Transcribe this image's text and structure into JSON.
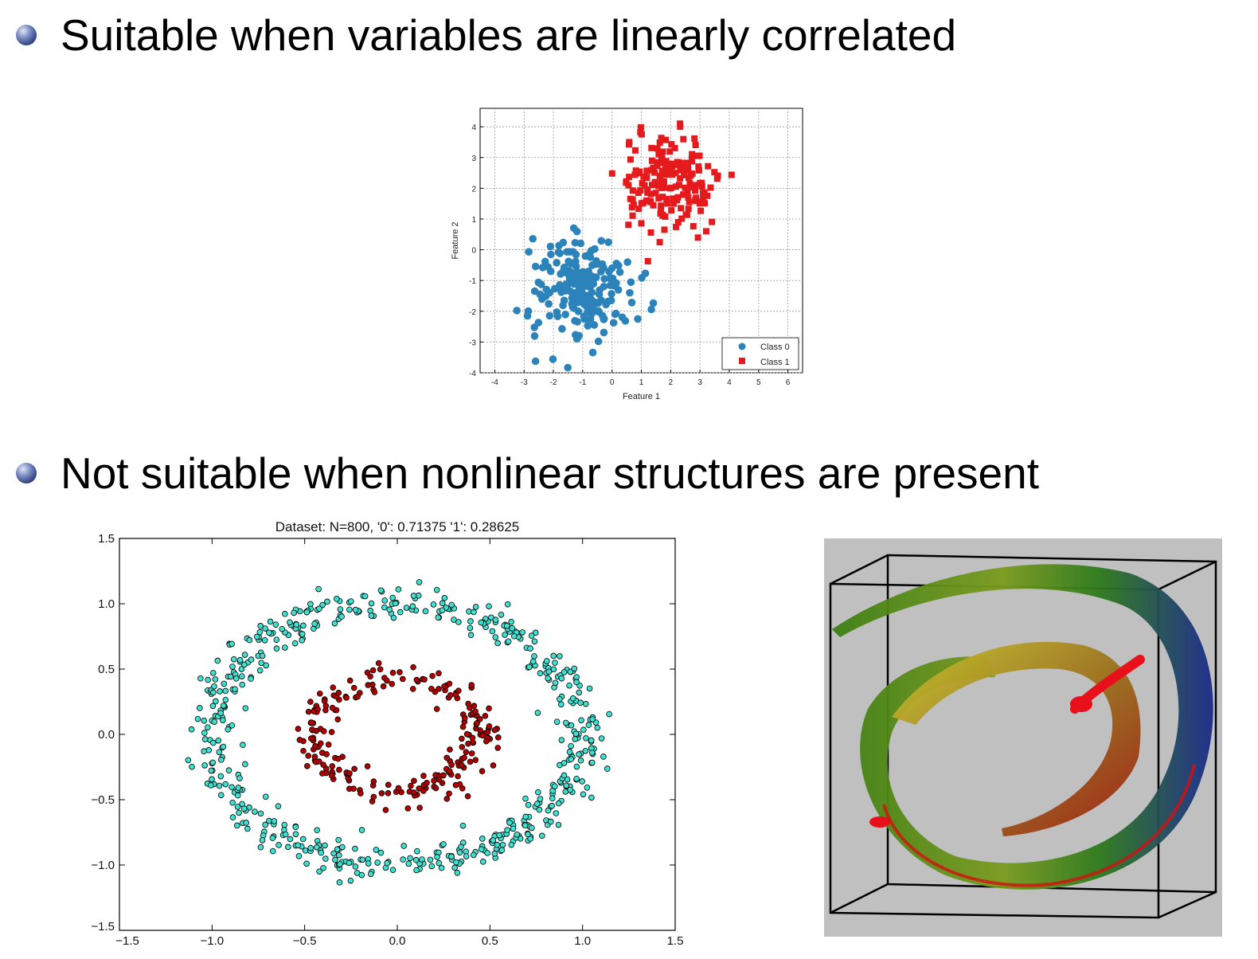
{
  "slide": {
    "bullet1": "Suitable when variables are linearly correlated",
    "bullet2": "Not suitable when nonlinear structures are present"
  },
  "colors": {
    "class0": "#2b83ba",
    "class1": "#e41a1c",
    "outer_ring": "#40e0d0",
    "inner_ring": "#b00000",
    "swiss_bg": "#c0c0c0"
  },
  "chart_data": [
    {
      "type": "scatter",
      "title": "",
      "xlabel": "Feature 1",
      "ylabel": "Feature 2",
      "xlim": [
        -4.5,
        6.5
      ],
      "ylim": [
        -4,
        4.6
      ],
      "xticks": [
        "-4",
        "-3",
        "-2",
        "-1",
        "0",
        "1",
        "2",
        "3",
        "4",
        "5",
        "6"
      ],
      "yticks": [
        "-4",
        "-3",
        "-2",
        "-1",
        "0",
        "1",
        "2",
        "3",
        "4"
      ],
      "grid": true,
      "legend": "bottom-right",
      "series": [
        {
          "name": "Class 0",
          "marker": "circle",
          "center": [
            -1.0,
            -1.2
          ],
          "spread": 0.85,
          "n": 200
        },
        {
          "name": "Class 1",
          "marker": "square",
          "center": [
            1.9,
            2.1
          ],
          "spread": 0.8,
          "n": 180
        }
      ]
    },
    {
      "type": "scatter",
      "title": "Dataset: N=800, '0': 0.71375 '1': 0.28625",
      "xlim": [
        -1.5,
        1.5
      ],
      "ylim": [
        -1.5,
        1.5
      ],
      "xticks": [
        "−1.5",
        "−1.0",
        "−0.5",
        "0.0",
        "0.5",
        "1.0",
        "1.5"
      ],
      "yticks": [
        "−1.5",
        "−1.0",
        "−0.5",
        "0.0",
        "0.5",
        "1.0",
        "1.5"
      ],
      "grid": false,
      "series": [
        {
          "name": "",
          "ring_radius": 1.0,
          "n": 571
        },
        {
          "name": "",
          "ring_radius": 0.45,
          "n": 229
        }
      ]
    },
    {
      "type": "scatter",
      "title": "",
      "description_free": true,
      "series": [
        {
          "name": "",
          "shape": "swiss-roll-3d"
        }
      ]
    }
  ]
}
